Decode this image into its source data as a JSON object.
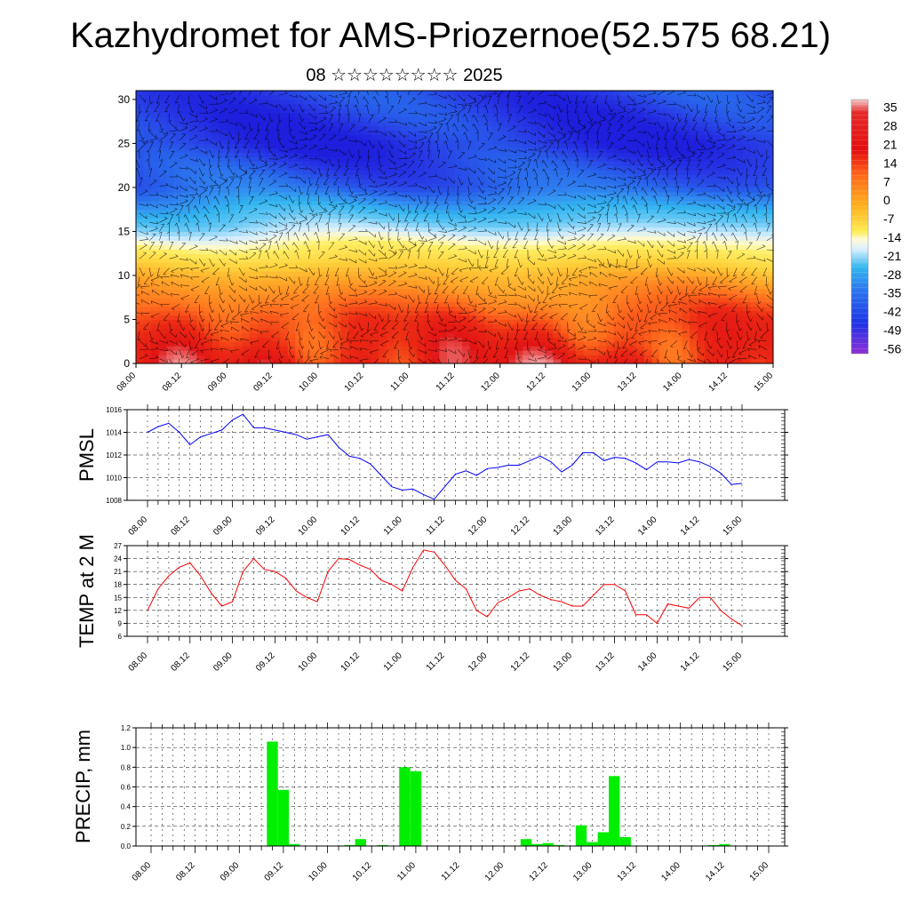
{
  "title": "Kazhydromet for AMS-Priozernoe(52.575 68.21)",
  "subtitle": "08 ☆☆☆☆☆☆☆☆ 2025",
  "x_tick_labels": [
    "08.00",
    "08.12",
    "09.00",
    "09.12",
    "10.00",
    "10.12",
    "11.00",
    "11.12",
    "12.00",
    "12.12",
    "13.00",
    "13.12",
    "14.00",
    "14.12",
    "15.00"
  ],
  "chart_data": [
    {
      "type": "heatmap",
      "title": "",
      "xlabel": "",
      "ylabel": "",
      "ylim": [
        0,
        31
      ],
      "y_ticks": [
        0,
        5,
        10,
        15,
        20,
        25,
        30
      ],
      "colorbar_labels": [
        35,
        28,
        21,
        14,
        7,
        0,
        -7,
        -14,
        -21,
        -28,
        -35,
        -42,
        -49,
        -56
      ],
      "description_overlay": "wind barbs",
      "field_profile": {
        "levels": [
          0,
          5,
          10,
          14,
          17,
          20,
          25,
          31
        ],
        "values": [
          25,
          18,
          5,
          -10,
          -25,
          -42,
          -52,
          -48
        ]
      }
    },
    {
      "type": "line",
      "ylabel": "PMSL",
      "ylim": [
        1008,
        1016
      ],
      "y_ticks": [
        1008,
        1010,
        1012,
        1014,
        1016
      ],
      "color": "#0000ff",
      "x": [
        0,
        1,
        2,
        3,
        4,
        5,
        6,
        7,
        8,
        9,
        10,
        11,
        12,
        13,
        14,
        15,
        16,
        17,
        18,
        19,
        20,
        21,
        22,
        23,
        24,
        25,
        26,
        27,
        28,
        29,
        30,
        31,
        32,
        33,
        34,
        35,
        36,
        37,
        38,
        39,
        40,
        41,
        42,
        43,
        44,
        45,
        46,
        47,
        48,
        49,
        50,
        51,
        52,
        53,
        54,
        55,
        56
      ],
      "values": [
        1014.0,
        1014.5,
        1014.8,
        1014.0,
        1012.9,
        1013.6,
        1013.9,
        1014.2,
        1015.1,
        1015.6,
        1014.4,
        1014.4,
        1014.2,
        1014.0,
        1013.8,
        1013.4,
        1013.6,
        1013.8,
        1012.7,
        1011.9,
        1011.7,
        1011.2,
        1010.2,
        1009.2,
        1008.9,
        1009.0,
        1008.5,
        1008.1,
        1009.2,
        1010.3,
        1010.6,
        1010.2,
        1010.8,
        1010.9,
        1011.1,
        1011.1,
        1011.5,
        1011.9,
        1011.4,
        1010.5,
        1011.1,
        1012.2,
        1012.2,
        1011.5,
        1011.8,
        1011.7,
        1011.3,
        1010.7,
        1011.4,
        1011.4,
        1011.3,
        1011.6,
        1011.4,
        1011.0,
        1010.4,
        1009.4,
        1009.5
      ]
    },
    {
      "type": "line",
      "ylabel": "TEMP at 2 M",
      "ylim": [
        6,
        27
      ],
      "y_ticks": [
        6,
        9,
        12,
        15,
        18,
        21,
        24,
        27
      ],
      "color": "#ff0000",
      "x": [
        0,
        1,
        2,
        3,
        4,
        5,
        6,
        7,
        8,
        9,
        10,
        11,
        12,
        13,
        14,
        15,
        16,
        17,
        18,
        19,
        20,
        21,
        22,
        23,
        24,
        25,
        26,
        27,
        28,
        29,
        30,
        31,
        32,
        33,
        34,
        35,
        36,
        37,
        38,
        39,
        40,
        41,
        42,
        43,
        44,
        45,
        46,
        47,
        48,
        49,
        50,
        51,
        52,
        53,
        54,
        55,
        56
      ],
      "values": [
        12,
        17,
        20,
        22,
        23,
        20,
        16,
        13,
        14,
        21,
        24,
        21.5,
        21,
        19.5,
        16.5,
        15,
        14,
        21,
        24,
        23.8,
        22.5,
        21.5,
        19,
        18,
        16.5,
        22,
        26,
        25.5,
        22.5,
        19,
        17,
        12,
        10.5,
        13.8,
        15,
        16.5,
        17,
        15.5,
        14.5,
        14,
        13,
        13,
        15.5,
        18,
        18,
        16.5,
        11,
        11,
        9,
        13.5,
        13,
        12.5,
        15,
        15,
        12,
        10,
        8.5
      ]
    },
    {
      "type": "bar",
      "ylabel": "PRECIP, mm",
      "ylim": [
        0,
        1.2
      ],
      "y_ticks": [
        "0.0",
        "0.2",
        "0.4",
        "0.6",
        "0.8",
        "1.0",
        "1.2"
      ],
      "color": "#00ee00",
      "x": [
        0,
        1,
        2,
        3,
        4,
        5,
        6,
        7,
        8,
        9,
        10,
        11,
        12,
        13,
        14,
        15,
        16,
        17,
        18,
        19,
        20,
        21,
        22,
        23,
        24,
        25,
        26,
        27,
        28,
        29,
        30,
        31,
        32,
        33,
        34,
        35,
        36,
        37,
        38,
        39,
        40,
        41,
        42,
        43,
        44,
        45,
        46,
        47,
        48,
        49,
        50,
        51,
        52,
        53,
        54,
        55,
        56
      ],
      "values": [
        0,
        0,
        0,
        0,
        0,
        0,
        0,
        0,
        0,
        0,
        0,
        1.06,
        0.57,
        0.02,
        0,
        0,
        0,
        0,
        0.01,
        0.07,
        0,
        0.01,
        0,
        0.8,
        0.76,
        0,
        0,
        0,
        0,
        0,
        0,
        0,
        0,
        0,
        0.07,
        0.02,
        0.03,
        0.01,
        0,
        0.21,
        0.04,
        0.14,
        0.71,
        0.09,
        0,
        0,
        0,
        0,
        0,
        0,
        0,
        0.01,
        0.02,
        0,
        0,
        0,
        0
      ]
    }
  ]
}
